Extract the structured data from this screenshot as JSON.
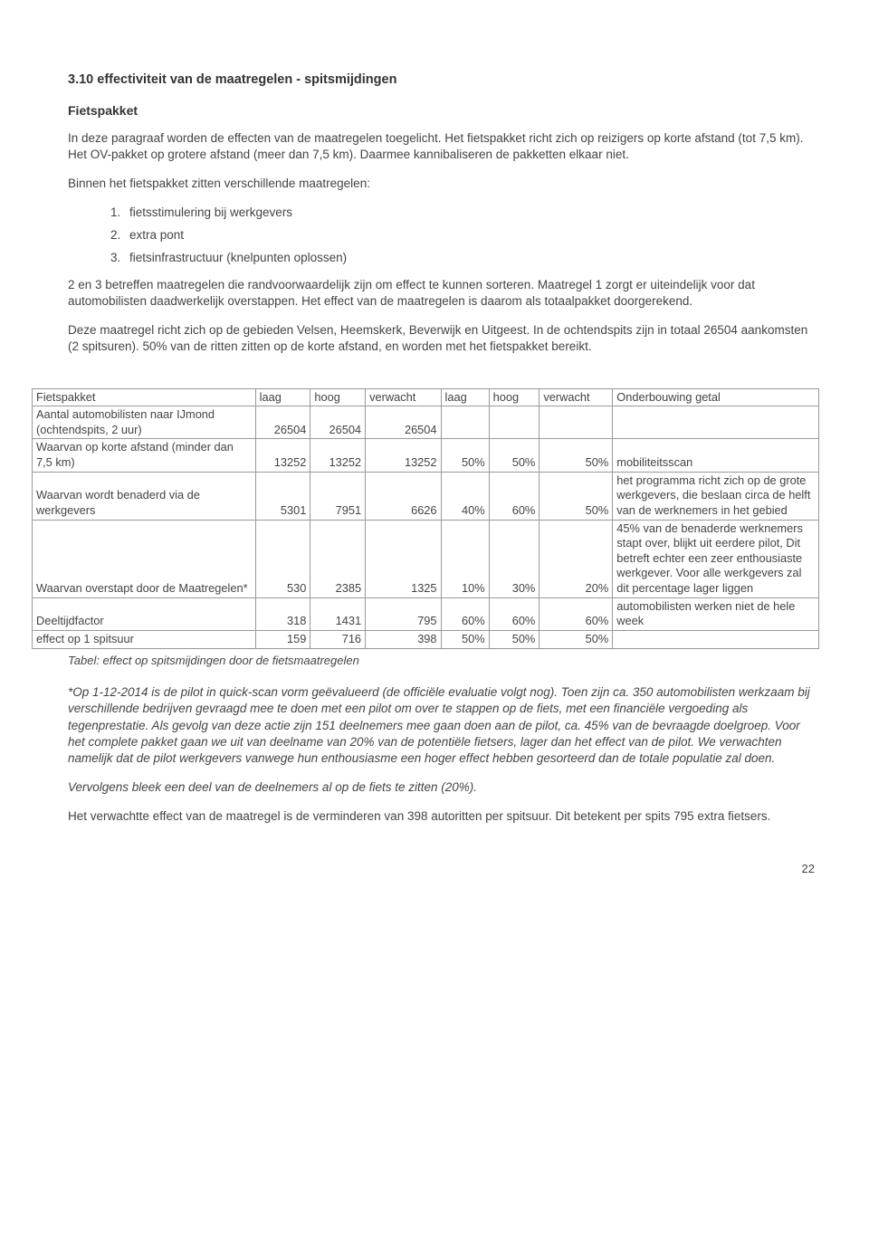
{
  "section": {
    "title": "3.10 effectiviteit van de maatregelen - spitsmijdingen",
    "subtitle": "Fietspakket",
    "intro_p1": "In deze paragraaf worden de effecten van de maatregelen toegelicht. Het fietspakket richt zich op reizigers op korte afstand (tot 7,5 km). Het OV-pakket op grotere afstand (meer dan 7,5 km). Daarmee kannibaliseren de pakketten elkaar niet.",
    "intro_p2": "Binnen het fietspakket zitten verschillende maatregelen:",
    "measures": [
      "fietsstimulering bij werkgevers",
      "extra pont",
      "fietsinfrastructuur (knelpunten oplossen)"
    ],
    "after_list_p1": "2 en 3 betreffen maatregelen die randvoorwaardelijk zijn om effect te kunnen sorteren. Maatregel 1 zorgt er uiteindelijk voor dat automobilisten daadwerkelijk overstappen. Het effect van de maatregelen is daarom als totaalpakket doorgerekend.",
    "after_list_p2": "Deze maatregel richt zich op de gebieden Velsen, Heemskerk, Beverwijk en Uitgeest. In de ochtendspits zijn in totaal 26504 aankomsten (2 spitsuren). 50% van de ritten zitten op de korte afstand, en worden met het fietspakket bereikt."
  },
  "table": {
    "header": {
      "c0": "Fietspakket",
      "c1": "laag",
      "c2": "hoog",
      "c3": "verwacht",
      "c4": "laag",
      "c5": "hoog",
      "c6": "verwacht",
      "c7": "Onderbouwing getal"
    },
    "rows": [
      {
        "c0": "Aantal automobilisten naar IJmond (ochtendspits, 2 uur)",
        "c1": "26504",
        "c2": "26504",
        "c3": "26504",
        "c4": "",
        "c5": "",
        "c6": "",
        "c7": ""
      },
      {
        "c0": "Waarvan op korte afstand (minder dan 7,5 km)",
        "c1": "13252",
        "c2": "13252",
        "c3": "13252",
        "c4": "50%",
        "c5": "50%",
        "c6": "50%",
        "c7": "mobiliteitsscan"
      },
      {
        "c0": "Waarvan wordt benaderd via de werkgevers",
        "c1": "5301",
        "c2": "7951",
        "c3": "6626",
        "c4": "40%",
        "c5": "60%",
        "c6": "50%",
        "c7": "het programma richt zich op de grote werkgevers, die beslaan circa de helft van de werknemers in het gebied"
      },
      {
        "c0": "Waarvan overstapt door de Maatregelen*",
        "c1": "530",
        "c2": "2385",
        "c3": "1325",
        "c4": "10%",
        "c5": "30%",
        "c6": "20%",
        "c7": "45% van de benaderde werknemers stapt over, blijkt uit eerdere pilot, Dit betreft echter een zeer enthousiaste werkgever. Voor alle werkgevers zal dit percentage lager liggen"
      },
      {
        "c0": "Deeltijdfactor",
        "c1": "318",
        "c2": "1431",
        "c3": "795",
        "c4": "60%",
        "c5": "60%",
        "c6": "60%",
        "c7": "automobilisten werken niet de hele week"
      },
      {
        "c0": "effect op 1 spitsuur",
        "c1": "159",
        "c2": "716",
        "c3": "398",
        "c4": "50%",
        "c5": "50%",
        "c6": "50%",
        "c7": ""
      }
    ],
    "caption": "Tabel: effect op spitsmijdingen door de fietsmaatregelen"
  },
  "footnotes": {
    "p1": "*Op 1-12-2014 is de pilot in quick-scan vorm geëvalueerd (de officiële evaluatie volgt nog). Toen zijn ca. 350 automobilisten werkzaam bij verschillende bedrijven gevraagd mee te doen met een pilot om over te stappen op de fiets, met een financiële vergoeding als tegenprestatie. Als gevolg van deze actie zijn 151 deelnemers mee gaan doen aan de pilot, ca. 45% van de bevraagde doelgroep. Voor het complete pakket gaan we uit van deelname van 20% van de potentiële fietsers, lager dan  het effect van de pilot. We verwachten namelijk dat de pilot werkgevers vanwege hun enthousiasme een hoger effect hebben gesorteerd dan de totale populatie zal doen.",
    "p2": "Vervolgens bleek een deel van de deelnemers al op de fiets te zitten (20%).",
    "p3": "Het verwachtte effect van de maatregel is de verminderen van 398 autoritten per spitsuur. Dit betekent per spits 795 extra fietsers."
  },
  "page_number": "22",
  "style": {
    "col_widths": [
      "195px",
      "48px",
      "48px",
      "66px",
      "42px",
      "44px",
      "64px",
      "180px"
    ]
  }
}
